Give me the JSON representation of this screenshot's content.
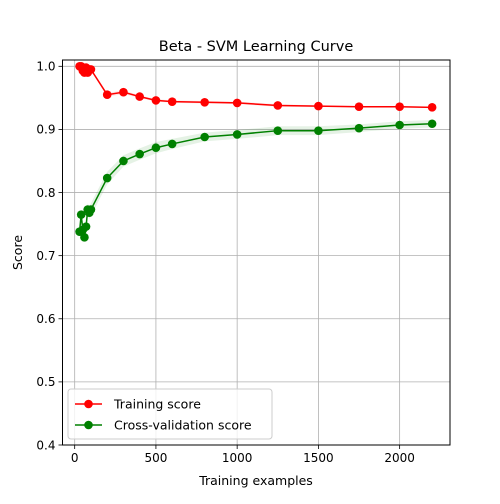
{
  "chart_data": {
    "type": "line",
    "title": "Beta - SVM Learning Curve",
    "xlabel": "Training examples",
    "ylabel": "Score",
    "xlim": [
      -75,
      2310
    ],
    "ylim": [
      0.4,
      1.01
    ],
    "x_ticks": [
      0,
      500,
      1000,
      1500,
      2000
    ],
    "x_tick_labels": [
      "0",
      "500",
      "1000",
      "1500",
      "2000"
    ],
    "y_ticks": [
      0.4,
      0.5,
      0.6,
      0.7,
      0.8,
      0.9,
      1.0
    ],
    "y_tick_labels": [
      "0.4",
      "0.5",
      "0.6",
      "0.7",
      "0.8",
      "0.9",
      "1.0"
    ],
    "grid": true,
    "legend_position": "lower-left",
    "x": [
      30,
      40,
      50,
      60,
      70,
      80,
      90,
      100,
      200,
      300,
      400,
      500,
      600,
      800,
      1000,
      1250,
      1500,
      1750,
      2000,
      2200
    ],
    "series": [
      {
        "name": "Training score",
        "color": "#ff0000",
        "band_color": "#ff0000",
        "values": [
          1.0,
          1.0,
          0.993,
          0.99,
          0.998,
          0.99,
          0.995,
          0.995,
          0.955,
          0.959,
          0.952,
          0.946,
          0.944,
          0.943,
          0.942,
          0.938,
          0.937,
          0.936,
          0.936,
          0.935
        ],
        "std": [
          0.0,
          0.0,
          0.004,
          0.004,
          0.002,
          0.003,
          0.002,
          0.002,
          0.003,
          0.003,
          0.002,
          0.002,
          0.002,
          0.002,
          0.002,
          0.002,
          0.001,
          0.001,
          0.001,
          0.001
        ]
      },
      {
        "name": "Cross-validation score",
        "color": "#008000",
        "band_color": "#008000",
        "values": [
          0.738,
          0.765,
          0.741,
          0.729,
          0.746,
          0.773,
          0.768,
          0.773,
          0.823,
          0.85,
          0.861,
          0.871,
          0.877,
          0.888,
          0.892,
          0.898,
          0.898,
          0.902,
          0.907,
          0.909
        ],
        "std": [
          0.006,
          0.006,
          0.006,
          0.006,
          0.008,
          0.01,
          0.01,
          0.01,
          0.01,
          0.009,
          0.009,
          0.009,
          0.008,
          0.007,
          0.007,
          0.007,
          0.007,
          0.006,
          0.006,
          0.006
        ]
      }
    ]
  }
}
